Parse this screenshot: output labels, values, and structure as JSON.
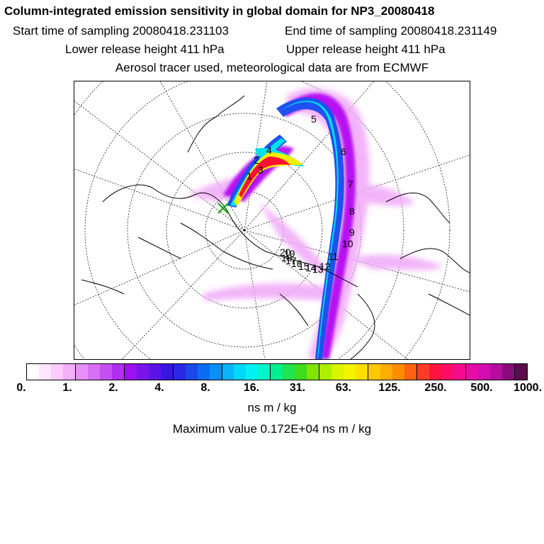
{
  "header": {
    "title": "Column-integrated emission sensitivity in global domain for NP3_20080418",
    "start_time": "Start time of sampling 20080418.231103",
    "end_time": "End time of sampling 20080418.231149",
    "lower_height": "Lower release height  411 hPa",
    "upper_height": "Upper release height  411 hPa",
    "tracer_info": "Aerosol tracer used, meteorological data are from ECMWF"
  },
  "map": {
    "day_labels": [
      "1",
      "2",
      "3",
      "4",
      "5",
      "6",
      "7",
      "8",
      "9",
      "10",
      "11",
      "12",
      "13",
      "14",
      "15",
      "16",
      "17",
      "18",
      "19",
      "20"
    ],
    "colors": {
      "plume_light": "#f0a8f8",
      "plume_violet": "#b000f0",
      "plume_blue": "#2050f0",
      "plume_cyan": "#00e0e8",
      "plume_yellow": "#f0f000",
      "plume_red": "#ff1030",
      "coast": "#000000"
    }
  },
  "colorbar": {
    "segments": [
      "#ffffff",
      "#fde6fe",
      "#f9ccfd",
      "#f2b0fb",
      "#e890f8",
      "#d870f6",
      "#c64ff4",
      "#b22ef3",
      "#9c10f2",
      "#7a14ea",
      "#5a14e6",
      "#3a14e2",
      "#2a28e6",
      "#1a48ea",
      "#0a6cf0",
      "#0a90f4",
      "#0ab4f8",
      "#00d8fa",
      "#00f2f2",
      "#00f6c8",
      "#00f090",
      "#20e450",
      "#40dc20",
      "#80e400",
      "#b0ec00",
      "#d8f400",
      "#f2f400",
      "#fde000",
      "#fec800",
      "#feac00",
      "#fe8c00",
      "#fe6410",
      "#fe3c28",
      "#fe1440",
      "#fe0c68",
      "#f40c8c",
      "#e60ca6",
      "#d20cb0",
      "#b40c9e",
      "#8a0c7a",
      "#5a0c4c"
    ],
    "tick_labels": [
      "0.",
      "1.",
      "2.",
      "4.",
      "8.",
      "16.",
      "31.",
      "63.",
      "125.",
      "250.",
      "500.",
      "1000."
    ]
  },
  "units": "ns m / kg",
  "max_value": "Maximum value  0.172E+04 ns m / kg"
}
